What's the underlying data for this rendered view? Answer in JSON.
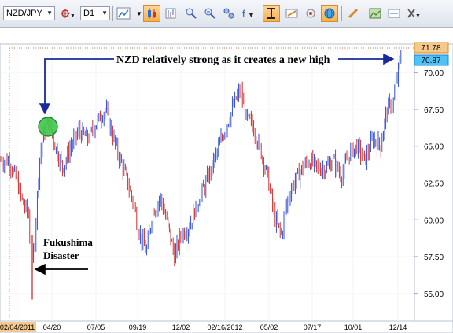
{
  "toolbar": {
    "symbol": "NZD/JPY",
    "timeframe": "D1",
    "icons": [
      "crosshair-icon",
      "line-chart-icon",
      "candle-chart-icon",
      "bar-chart-icon",
      "zoom-in-icon",
      "zoom-out-icon",
      "indicators-icon",
      "autoscroll-icon",
      "template-icon",
      "drawing-icon",
      "globe-icon",
      "pencil-icon",
      "image-icon",
      "period-icon",
      "tools-icon"
    ]
  },
  "chart": {
    "price_current": "70.87",
    "price_high": "71.78",
    "y_ticks": [
      "70.00",
      "67.50",
      "65.00",
      "62.50",
      "60.00",
      "57.50",
      "55.00"
    ],
    "x_ticks": [
      "02/04/2011",
      "04/20",
      "07/05",
      "09/19",
      "12/02",
      "02/16/2012",
      "05/02",
      "07/17",
      "10/01",
      "12/14"
    ],
    "annotation_top": "NZD relatively strong as it creates a new high",
    "annotation_bottom_line1": "Fukushima",
    "annotation_bottom_line2": "Disaster",
    "colors": {
      "up": "#1f3fd6",
      "down": "#cc1f1f",
      "arrow": "#1a2a9a",
      "marker": "#3cc84a",
      "price_badge": "#4fc3f7",
      "high_badge": "#f5c98a"
    }
  }
}
